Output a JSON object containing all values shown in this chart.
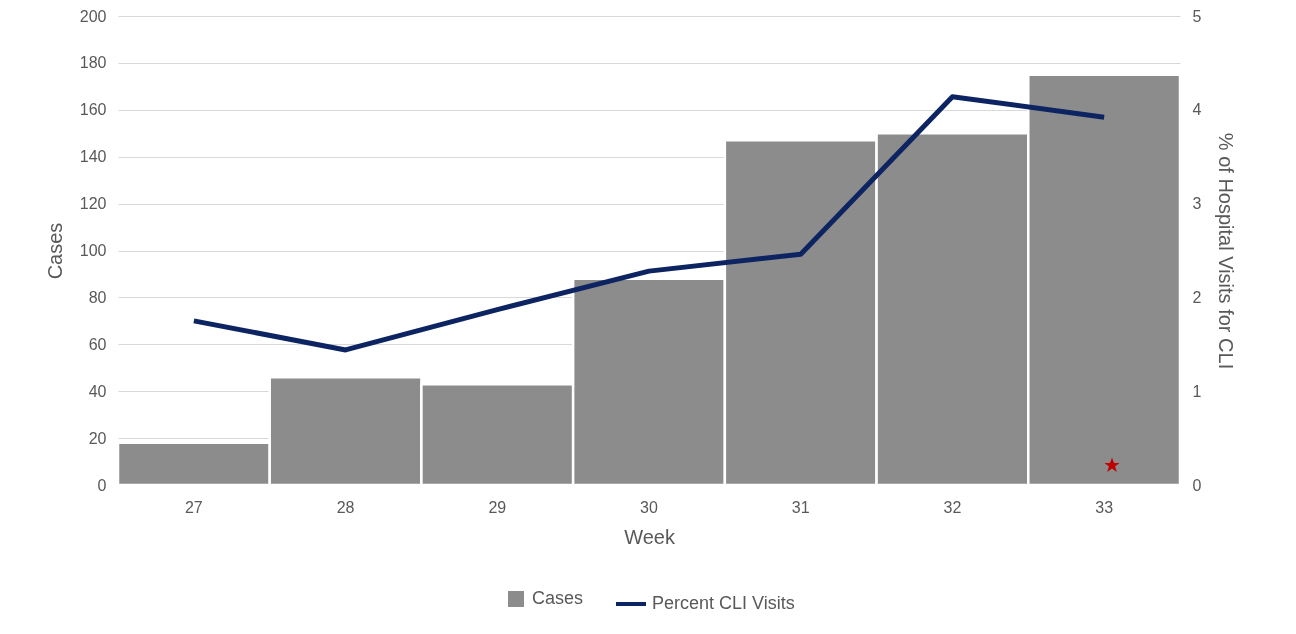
{
  "chart_data": {
    "type": "bar",
    "xlabel": "Week",
    "ylabel": "Cases",
    "y2label": "% of Hospital Visits for CLI",
    "categories": [
      "27",
      "28",
      "29",
      "30",
      "31",
      "32",
      "33"
    ],
    "series": [
      {
        "name": "Cases",
        "color": "#8c8c8c",
        "values": [
          18,
          46,
          43,
          88,
          147,
          150,
          175
        ]
      },
      {
        "name": "Percent CLI Visits",
        "type": "line",
        "axis": "y2",
        "color": "#0c2461",
        "values": [
          1.75,
          1.44,
          1.87,
          2.28,
          2.46,
          4.14,
          3.92
        ]
      }
    ],
    "ylim": [
      0,
      200
    ],
    "yticks": [
      0,
      20,
      40,
      60,
      80,
      100,
      120,
      140,
      160,
      180,
      200
    ],
    "y2lim": [
      0,
      5
    ],
    "y2ticks": [
      0,
      1,
      2,
      3,
      4,
      5
    ],
    "grid": "y",
    "legend": "bottom"
  }
}
